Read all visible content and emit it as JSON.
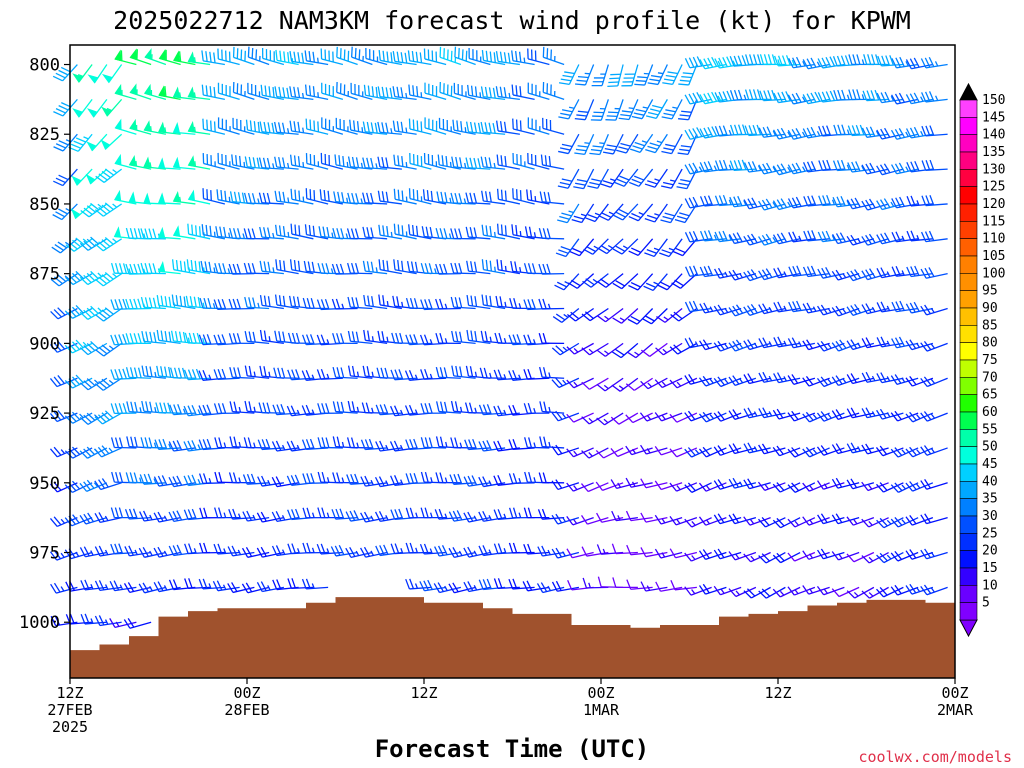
{
  "chart_data": {
    "type": "wind_barb_time_height",
    "title": "2025022712 NAM3KM forecast wind profile (kt) for KPWM",
    "xlabel": "Forecast Time (UTC)",
    "ylabel": "",
    "y_axis": {
      "scale": "pressure_hPa",
      "range": [
        1020,
        793
      ],
      "ticks": [
        800,
        825,
        850,
        875,
        900,
        925,
        950,
        975,
        1000
      ]
    },
    "x_axis": {
      "range_hours": [
        0,
        60
      ],
      "ticks": [
        {
          "hour": 0,
          "lines": [
            "12Z",
            "27FEB",
            "2025"
          ]
        },
        {
          "hour": 12,
          "lines": [
            "00Z",
            "28FEB"
          ]
        },
        {
          "hour": 24,
          "lines": [
            "12Z"
          ]
        },
        {
          "hour": 36,
          "lines": [
            "00Z",
            "1MAR"
          ]
        },
        {
          "hour": 48,
          "lines": [
            "12Z"
          ]
        },
        {
          "hour": 60,
          "lines": [
            "00Z",
            "2MAR"
          ]
        }
      ]
    },
    "surface_pressure_hPa": [
      {
        "hour": 0,
        "p": 1010
      },
      {
        "hour": 2,
        "p": 1008
      },
      {
        "hour": 4,
        "p": 1005
      },
      {
        "hour": 6,
        "p": 998
      },
      {
        "hour": 8,
        "p": 996
      },
      {
        "hour": 10,
        "p": 995
      },
      {
        "hour": 14,
        "p": 995
      },
      {
        "hour": 16,
        "p": 993
      },
      {
        "hour": 18,
        "p": 991
      },
      {
        "hour": 22,
        "p": 991
      },
      {
        "hour": 24,
        "p": 993
      },
      {
        "hour": 28,
        "p": 995
      },
      {
        "hour": 30,
        "p": 997
      },
      {
        "hour": 34,
        "p": 1001
      },
      {
        "hour": 36,
        "p": 1001
      },
      {
        "hour": 38,
        "p": 1002
      },
      {
        "hour": 40,
        "p": 1001
      },
      {
        "hour": 44,
        "p": 998
      },
      {
        "hour": 46,
        "p": 997
      },
      {
        "hour": 48,
        "p": 996
      },
      {
        "hour": 50,
        "p": 994
      },
      {
        "hour": 52,
        "p": 993
      },
      {
        "hour": 54,
        "p": 992
      },
      {
        "hour": 56,
        "p": 992
      },
      {
        "hour": 58,
        "p": 993
      },
      {
        "hour": 60,
        "p": 997
      }
    ],
    "wind_speed_kt_by_time": [
      {
        "hour_range": [
          0,
          1
        ],
        "low": 20,
        "mid": 30,
        "high": 38
      },
      {
        "hour_range": [
          1,
          4
        ],
        "low": 22,
        "mid": 40,
        "high": 52
      },
      {
        "hour_range": [
          4,
          10
        ],
        "low": 20,
        "mid": 42,
        "high": 58
      },
      {
        "hour_range": [
          10,
          16
        ],
        "low": 20,
        "mid": 30,
        "high": 40
      },
      {
        "hour_range": [
          16,
          24
        ],
        "low": 25,
        "mid": 28,
        "high": 38
      },
      {
        "hour_range": [
          24,
          30
        ],
        "low": 25,
        "mid": 28,
        "high": 40
      },
      {
        "hour_range": [
          30,
          35
        ],
        "low": 20,
        "mid": 25,
        "high": 35
      },
      {
        "hour_range": [
          35,
          43
        ],
        "low": 10,
        "mid": 15,
        "high": 38
      },
      {
        "hour_range": [
          43,
          50
        ],
        "low": 15,
        "mid": 25,
        "high": 42
      },
      {
        "hour_range": [
          50,
          56
        ],
        "low": 12,
        "mid": 25,
        "high": 38
      },
      {
        "hour_range": [
          56,
          60
        ],
        "low": 20,
        "mid": 25,
        "high": 35
      }
    ],
    "colorbar": {
      "values": [
        5,
        10,
        15,
        20,
        25,
        30,
        35,
        40,
        45,
        50,
        55,
        60,
        65,
        70,
        75,
        80,
        85,
        90,
        95,
        100,
        105,
        110,
        115,
        120,
        125,
        130,
        135,
        140,
        145,
        150
      ],
      "colors": [
        "#8000ff",
        "#6a00ff",
        "#3300ff",
        "#0010ff",
        "#0030ff",
        "#0050ff",
        "#0080ff",
        "#00a8ff",
        "#00d0ff",
        "#00ffdd",
        "#00ffaa",
        "#00ff50",
        "#20ff00",
        "#80ff00",
        "#c0ff00",
        "#ffff00",
        "#ffe000",
        "#ffc000",
        "#ffa000",
        "#ff9000",
        "#ff8000",
        "#ff6000",
        "#ff4000",
        "#ff2000",
        "#ff0000",
        "#ff0040",
        "#ff0080",
        "#ff00c0",
        "#ff00ff",
        "#ff40ff"
      ]
    }
  },
  "credit": "coolwx.com/models"
}
